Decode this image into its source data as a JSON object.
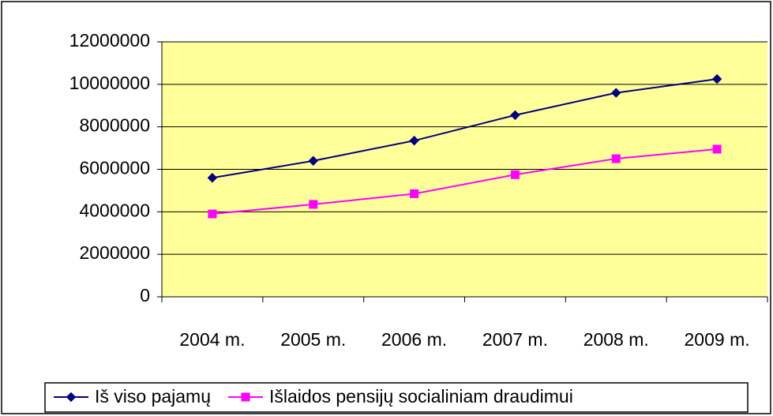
{
  "chart_data": {
    "type": "line",
    "categories": [
      "2004 m.",
      "2005 m.",
      "2006 m.",
      "2007 m.",
      "2008 m.",
      "2009 m."
    ],
    "series": [
      {
        "name": "Iš viso pajamų",
        "color": "#000080",
        "marker": "diamond",
        "values": [
          5600000,
          6400000,
          7350000,
          8550000,
          9600000,
          10250000
        ]
      },
      {
        "name": "Išlaidos pensijų socialiniam draudimui",
        "color": "#ff00ff",
        "marker": "square",
        "values": [
          3900000,
          4350000,
          4850000,
          5750000,
          6500000,
          6950000
        ]
      }
    ],
    "ylim": [
      0,
      12000000
    ],
    "yticks": [
      0,
      2000000,
      4000000,
      6000000,
      8000000,
      10000000,
      12000000
    ],
    "grid": true,
    "legend": "bottom",
    "plot_background": "#ffff99"
  }
}
